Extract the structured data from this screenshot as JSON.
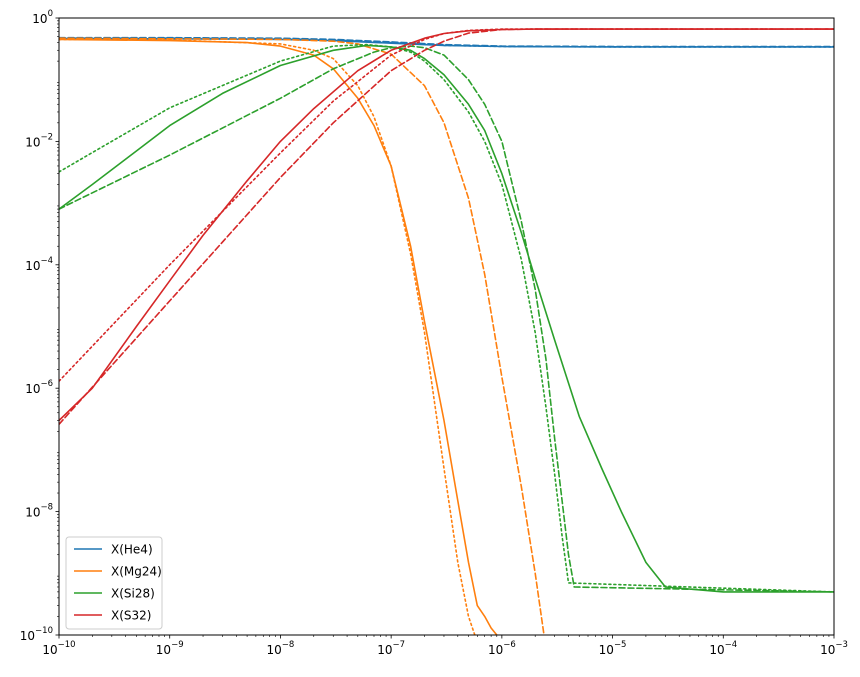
{
  "chart_data": {
    "type": "line",
    "title": "",
    "xlabel": "",
    "ylabel": "",
    "x_scale": "log",
    "y_scale": "log",
    "xlim": [
      1e-10,
      0.001
    ],
    "ylim": [
      1e-10,
      1
    ],
    "grid": false,
    "legend_position": "lower left",
    "x_ticks": [
      {
        "value": 1e-10,
        "base": "10",
        "exp": "−10"
      },
      {
        "value": 1e-09,
        "base": "10",
        "exp": "−9"
      },
      {
        "value": 1e-08,
        "base": "10",
        "exp": "−8"
      },
      {
        "value": 1e-07,
        "base": "10",
        "exp": "−7"
      },
      {
        "value": 1e-06,
        "base": "10",
        "exp": "−6"
      },
      {
        "value": 1e-05,
        "base": "10",
        "exp": "−5"
      },
      {
        "value": 0.0001,
        "base": "10",
        "exp": "−4"
      },
      {
        "value": 0.001,
        "base": "10",
        "exp": "−3"
      }
    ],
    "y_ticks": [
      {
        "value": 1e-10,
        "base": "10",
        "exp": "−10"
      },
      {
        "value": 1e-08,
        "base": "10",
        "exp": "−8"
      },
      {
        "value": 1e-06,
        "base": "10",
        "exp": "−6"
      },
      {
        "value": 0.0001,
        "base": "10",
        "exp": "−4"
      },
      {
        "value": 0.01,
        "base": "10",
        "exp": "−2"
      },
      {
        "value": 1,
        "base": "10",
        "exp": "0"
      }
    ],
    "legend": [
      {
        "label": "X(He4)",
        "color": "#1f77b4"
      },
      {
        "label": "X(Mg24)",
        "color": "#ff7f0e"
      },
      {
        "label": "X(Si28)",
        "color": "#2ca02c"
      },
      {
        "label": "X(S32)",
        "color": "#d62728"
      }
    ],
    "series": [
      {
        "name": "X(He4)",
        "color": "#1f77b4",
        "style": "solid",
        "x": [
          1e-10,
          1e-09,
          1e-08,
          3e-08,
          1e-07,
          3e-07,
          1e-06,
          1e-05,
          0.001
        ],
        "y": [
          0.46,
          0.46,
          0.45,
          0.43,
          0.39,
          0.36,
          0.345,
          0.34,
          0.34
        ]
      },
      {
        "name": "",
        "color": "#1f77b4",
        "style": "dashed",
        "x": [
          1e-10,
          1e-09,
          1e-08,
          3e-08,
          1e-07,
          3e-07,
          1e-06,
          1e-05,
          0.001
        ],
        "y": [
          0.48,
          0.48,
          0.47,
          0.45,
          0.41,
          0.37,
          0.35,
          0.345,
          0.345
        ]
      },
      {
        "name": "",
        "color": "#1f77b4",
        "style": "dotted",
        "x": [
          1e-10,
          1e-09,
          1e-08,
          3e-08,
          1e-07,
          3e-07,
          1e-06,
          1e-05,
          0.001
        ],
        "y": [
          0.47,
          0.47,
          0.46,
          0.44,
          0.4,
          0.36,
          0.345,
          0.34,
          0.34
        ]
      },
      {
        "name": "X(Mg24)",
        "color": "#ff7f0e",
        "style": "solid",
        "x": [
          1e-10,
          1e-09,
          5e-09,
          1e-08,
          2e-08,
          3e-08,
          5e-08,
          7e-08,
          1e-07,
          1.5e-07,
          2e-07,
          3e-07,
          4e-07,
          5e-07,
          6e-07,
          7e-07,
          8e-07,
          9e-07
        ],
        "y": [
          0.45,
          0.43,
          0.4,
          0.35,
          0.25,
          0.15,
          0.05,
          0.018,
          0.004,
          0.0002,
          1.2e-05,
          3e-07,
          1.5e-08,
          1.5e-09,
          3e-10,
          2e-10,
          1.3e-10,
          1e-10
        ]
      },
      {
        "name": "",
        "color": "#ff7f0e",
        "style": "dashed",
        "x": [
          1e-10,
          1e-09,
          1e-08,
          3e-08,
          5e-08,
          1e-07,
          2e-07,
          3e-07,
          5e-07,
          7e-07,
          1e-06,
          1.5e-06,
          2e-06,
          2.4e-06
        ],
        "y": [
          0.47,
          0.46,
          0.45,
          0.42,
          0.38,
          0.26,
          0.08,
          0.02,
          0.0012,
          7e-05,
          1.5e-06,
          2.5e-08,
          1e-09,
          1e-10
        ]
      },
      {
        "name": "",
        "color": "#ff7f0e",
        "style": "dotted",
        "x": [
          1e-10,
          1e-09,
          1e-08,
          2e-08,
          3e-08,
          5e-08,
          7e-08,
          1e-07,
          1.5e-07,
          2e-07,
          3e-07,
          4e-07,
          5e-07,
          5.7e-07
        ],
        "y": [
          0.45,
          0.44,
          0.38,
          0.3,
          0.22,
          0.08,
          0.025,
          0.004,
          0.00015,
          8e-06,
          5e-08,
          1.5e-09,
          2e-10,
          1e-10
        ]
      },
      {
        "name": "X(Si28)",
        "color": "#2ca02c",
        "style": "solid",
        "x": [
          1e-10,
          2e-10,
          5e-10,
          1e-09,
          3e-09,
          1e-08,
          3e-08,
          6e-08,
          1e-07,
          1.5e-07,
          2e-07,
          3e-07,
          5e-07,
          7e-07,
          1e-06,
          1.5e-06,
          2e-06,
          3e-06,
          5e-06,
          8e-06,
          1.2e-05,
          2e-05,
          3e-05,
          0.0001,
          0.001
        ],
        "y": [
          0.0008,
          0.002,
          0.007,
          0.018,
          0.06,
          0.17,
          0.3,
          0.36,
          0.34,
          0.3,
          0.22,
          0.12,
          0.04,
          0.015,
          0.003,
          0.00033,
          6e-05,
          6e-06,
          3.5e-07,
          5e-08,
          1e-08,
          1.5e-09,
          6e-10,
          5e-10,
          5e-10
        ]
      },
      {
        "name": "",
        "color": "#2ca02c",
        "style": "dashed",
        "x": [
          1e-10,
          1e-09,
          1e-08,
          3e-08,
          7e-08,
          1e-07,
          1.5e-07,
          2e-07,
          3e-07,
          5e-07,
          7e-07,
          1e-06,
          1.5e-06,
          2e-06,
          2.5e-06,
          3e-06,
          3.5e-06,
          4e-06,
          4.5e-06,
          0.001
        ],
        "y": [
          0.0008,
          0.006,
          0.05,
          0.15,
          0.28,
          0.33,
          0.35,
          0.33,
          0.25,
          0.1,
          0.04,
          0.01,
          0.0005,
          4e-05,
          3e-06,
          1.5e-07,
          1.5e-08,
          2e-09,
          6e-10,
          5e-10
        ]
      },
      {
        "name": "",
        "color": "#2ca02c",
        "style": "dotted",
        "x": [
          1e-10,
          1e-09,
          1e-08,
          3e-08,
          6e-08,
          1e-07,
          1.5e-07,
          2e-07,
          3e-07,
          5e-07,
          7e-07,
          1e-06,
          1.5e-06,
          2e-06,
          2.5e-06,
          3e-06,
          3.5e-06,
          4e-06,
          0.001
        ],
        "y": [
          0.0032,
          0.035,
          0.2,
          0.35,
          0.37,
          0.34,
          0.28,
          0.2,
          0.1,
          0.03,
          0.01,
          0.002,
          0.00012,
          8e-06,
          5e-07,
          4e-08,
          4e-09,
          7e-10,
          5e-10
        ]
      },
      {
        "name": "X(S32)",
        "color": "#d62728",
        "style": "solid",
        "x": [
          1e-10,
          2e-10,
          5e-10,
          1e-09,
          2e-09,
          5e-09,
          1e-08,
          2e-08,
          5e-08,
          1e-07,
          2e-07,
          3e-07,
          5e-07,
          1e-06,
          2e-06,
          1e-05,
          0.001
        ],
        "y": [
          3e-07,
          1e-06,
          1e-05,
          5.5e-05,
          0.0003,
          0.0023,
          0.01,
          0.034,
          0.14,
          0.3,
          0.47,
          0.56,
          0.62,
          0.65,
          0.66,
          0.66,
          0.66
        ]
      },
      {
        "name": "",
        "color": "#d62728",
        "style": "dashed",
        "x": [
          1e-10,
          1e-09,
          1e-08,
          3e-08,
          1e-07,
          2e-07,
          3e-07,
          5e-07,
          1e-06,
          2e-06,
          1e-05,
          0.001
        ],
        "y": [
          2.6e-07,
          2.6e-05,
          0.0026,
          0.02,
          0.14,
          0.3,
          0.42,
          0.57,
          0.65,
          0.66,
          0.66,
          0.66
        ]
      },
      {
        "name": "",
        "color": "#d62728",
        "style": "dotted",
        "x": [
          1e-10,
          1e-09,
          1e-08,
          3e-08,
          1e-07,
          2e-07,
          3e-07,
          5e-07,
          1e-06,
          2e-06,
          1e-05,
          0.001
        ],
        "y": [
          1.3e-06,
          0.0001,
          0.0065,
          0.045,
          0.25,
          0.45,
          0.56,
          0.63,
          0.66,
          0.66,
          0.66,
          0.66
        ]
      }
    ]
  }
}
